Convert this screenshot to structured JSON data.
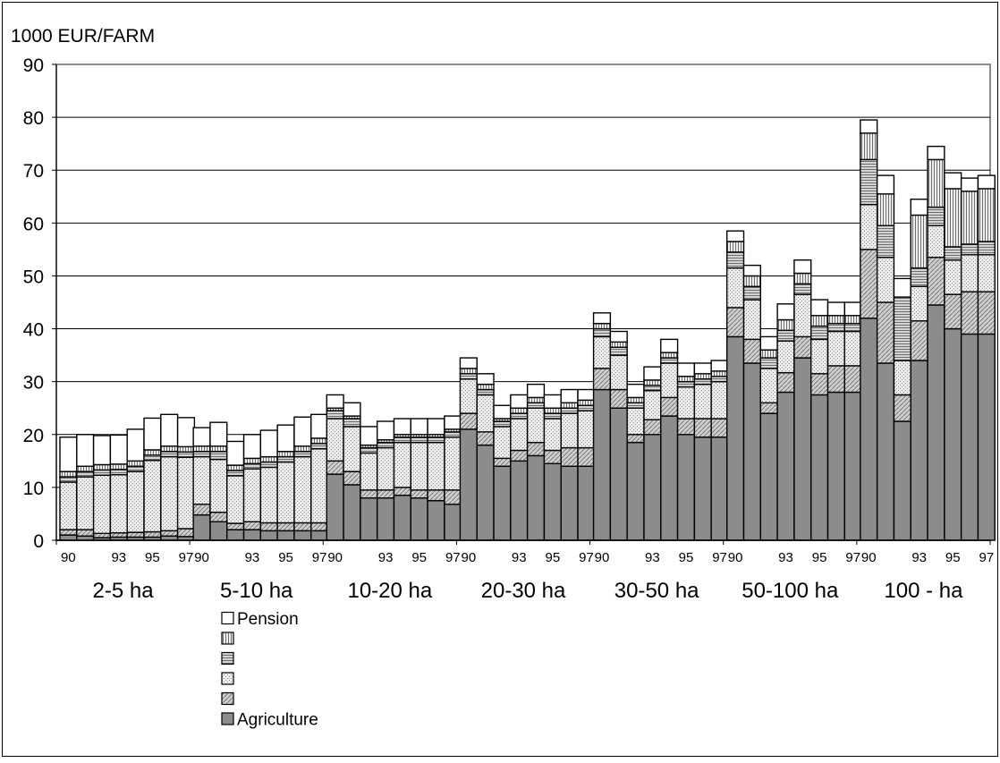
{
  "chart_data": {
    "type": "bar",
    "stacked": true,
    "title": "",
    "ylabel": "1000 EUR/FARM",
    "ylim": [
      0,
      90
    ],
    "y_ticks": [
      0,
      10,
      20,
      30,
      40,
      50,
      60,
      70,
      80,
      90
    ],
    "grid": true,
    "legend_position": "bottom",
    "years": [
      "90",
      "91",
      "92",
      "93",
      "94",
      "95",
      "96",
      "97"
    ],
    "year_tick_labels": [
      "90",
      "93",
      "95",
      "97"
    ],
    "groups": [
      "2-5 ha",
      "5-10 ha",
      "10-20 ha",
      "20-30 ha",
      "30-50 ha",
      "50-100 ha",
      "100 - ha"
    ],
    "series": [
      {
        "name": "Agriculture",
        "color": "#8c8c8c",
        "pattern": "solid",
        "values": [
          [
            1.0,
            0.8,
            0.5,
            0.6,
            0.6,
            0.6,
            0.8,
            0.7
          ],
          [
            4.8,
            3.5,
            2.0,
            2.0,
            1.8,
            1.8,
            1.8,
            1.8
          ],
          [
            12.5,
            10.5,
            8.0,
            8.0,
            8.5,
            8.0,
            7.5,
            6.8
          ],
          [
            21.0,
            18.0,
            14.0,
            15.0,
            16.0,
            14.5,
            14.0,
            14.0
          ],
          [
            28.5,
            25.0,
            18.5,
            20.0,
            23.5,
            20.0,
            19.5,
            19.5
          ],
          [
            38.5,
            33.5,
            24.0,
            28.0,
            34.5,
            27.5,
            28.0,
            28.0
          ],
          [
            42.0,
            33.5,
            22.5,
            34.0,
            44.5,
            40.0,
            39.0,
            39.0
          ]
        ]
      },
      {
        "name": "",
        "color": "#c8c8c8",
        "pattern": "diag",
        "values": [
          [
            1.0,
            1.2,
            0.8,
            0.8,
            0.9,
            1.0,
            1.0,
            1.5
          ],
          [
            2.0,
            1.8,
            1.2,
            1.5,
            1.5,
            1.5,
            1.5,
            1.5
          ],
          [
            2.5,
            2.5,
            1.5,
            1.5,
            1.5,
            1.5,
            2.0,
            2.7
          ],
          [
            3.0,
            2.5,
            1.5,
            2.0,
            2.5,
            2.5,
            3.5,
            3.5
          ],
          [
            4.0,
            3.5,
            1.5,
            2.8,
            3.5,
            3.0,
            3.5,
            3.5
          ],
          [
            5.5,
            4.5,
            2.0,
            3.7,
            4.0,
            4.0,
            5.0,
            5.0
          ],
          [
            13.0,
            11.5,
            5.0,
            7.5,
            9.0,
            6.5,
            8.0,
            8.0
          ]
        ]
      },
      {
        "name": "",
        "color": "#e6e6e6",
        "pattern": "dots",
        "values": [
          [
            9.0,
            10.0,
            11.0,
            11.0,
            11.5,
            13.5,
            14.0,
            13.5
          ],
          [
            9.0,
            10.0,
            9.0,
            10.0,
            10.5,
            11.5,
            12.5,
            14.0
          ],
          [
            8.0,
            8.5,
            7.0,
            8.0,
            8.5,
            9.0,
            9.0,
            10.0
          ],
          [
            6.5,
            7.0,
            6.0,
            6.0,
            6.5,
            6.0,
            6.5,
            7.0
          ],
          [
            6.0,
            6.5,
            5.0,
            5.5,
            6.5,
            6.0,
            6.5,
            7.0
          ],
          [
            7.5,
            7.5,
            6.5,
            6.0,
            8.0,
            6.5,
            6.5,
            6.5
          ],
          [
            8.5,
            8.5,
            6.5,
            6.5,
            6.0,
            6.5,
            7.0,
            7.0
          ]
        ]
      },
      {
        "name": "",
        "color": "#a8a8a8",
        "pattern": "hlines",
        "values": [
          [
            1.0,
            1.0,
            1.0,
            1.0,
            1.0,
            1.0,
            1.0,
            1.0
          ],
          [
            1.0,
            1.5,
            1.0,
            1.0,
            1.0,
            1.0,
            1.0,
            1.0
          ],
          [
            1.5,
            1.5,
            1.0,
            1.0,
            1.0,
            1.0,
            1.0,
            1.0
          ],
          [
            1.0,
            1.0,
            1.0,
            1.0,
            1.0,
            1.0,
            1.0,
            1.0
          ],
          [
            1.5,
            1.5,
            1.0,
            1.0,
            1.0,
            1.0,
            1.0,
            1.0
          ],
          [
            3.0,
            2.5,
            2.0,
            2.0,
            2.0,
            2.5,
            1.5,
            1.5
          ],
          [
            8.5,
            6.0,
            12.0,
            3.5,
            3.5,
            2.5,
            2.0,
            2.5
          ]
        ]
      },
      {
        "name": "",
        "color": "#d8d8d8",
        "pattern": "vlines",
        "values": [
          [
            1.0,
            1.0,
            1.0,
            1.0,
            1.0,
            1.0,
            1.0,
            1.0
          ],
          [
            1.0,
            1.0,
            1.0,
            1.0,
            1.0,
            1.0,
            1.0,
            1.0
          ],
          [
            0.5,
            0.5,
            0.5,
            0.5,
            0.5,
            0.5,
            0.5,
            0.5
          ],
          [
            1.0,
            1.0,
            0.5,
            1.0,
            1.0,
            1.0,
            1.0,
            1.0
          ],
          [
            1.0,
            1.0,
            1.0,
            1.0,
            1.0,
            1.0,
            1.0,
            1.0
          ],
          [
            2.0,
            2.0,
            1.5,
            2.0,
            2.0,
            2.0,
            1.5,
            1.5
          ],
          [
            5.0,
            6.0,
            0.0,
            10.0,
            9.0,
            11.0,
            10.0,
            10.0
          ]
        ]
      },
      {
        "name": "Pension",
        "color": "#ffffff",
        "pattern": "solid",
        "values": [
          [
            6.5,
            6.0,
            5.5,
            5.5,
            6.0,
            6.0,
            6.0,
            5.5
          ],
          [
            3.5,
            4.5,
            4.5,
            4.5,
            5.0,
            5.0,
            5.5,
            4.5
          ],
          [
            2.5,
            2.5,
            3.5,
            3.5,
            3.0,
            3.0,
            3.0,
            2.5
          ],
          [
            2.0,
            2.0,
            2.5,
            2.5,
            2.5,
            2.5,
            2.5,
            2.0
          ],
          [
            2.0,
            2.0,
            2.5,
            2.5,
            2.5,
            2.5,
            2.0,
            2.0
          ],
          [
            2.0,
            2.0,
            2.5,
            3.0,
            2.5,
            3.0,
            2.5,
            2.5
          ],
          [
            2.5,
            3.5,
            3.5,
            3.0,
            2.5,
            3.0,
            2.5,
            2.5
          ]
        ]
      }
    ]
  }
}
